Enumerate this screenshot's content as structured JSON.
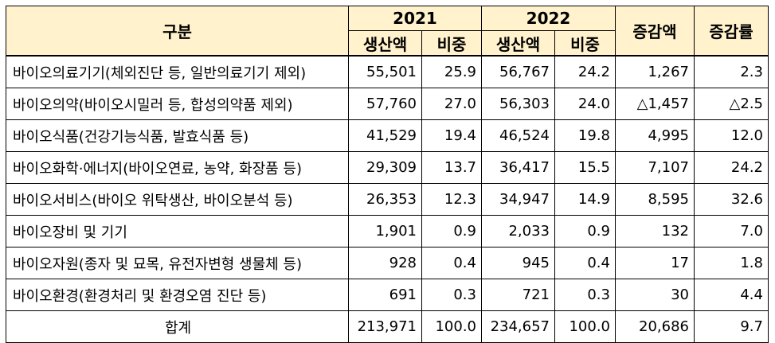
{
  "header": {
    "category": "구분",
    "year1": "2021",
    "year2": "2022",
    "production": "생산액",
    "share": "비중",
    "change_amount": "증감액",
    "change_rate": "증감률"
  },
  "rows": [
    {
      "label": "바이오의료기기(체외진단 등, 일반의료기기 제외)",
      "p2021": "55,501",
      "s2021": "25.9",
      "p2022": "56,767",
      "s2022": "24.2",
      "diff": "1,267",
      "rate": "2.3"
    },
    {
      "label": "바이오의약(바이오시밀러 등, 합성의약품 제외)",
      "p2021": "57,760",
      "s2021": "27.0",
      "p2022": "56,303",
      "s2022": "24.0",
      "diff": "△1,457",
      "rate": "△2.5"
    },
    {
      "label": "바이오식품(건강기능식품, 발효식품 등)",
      "p2021": "41,529",
      "s2021": "19.4",
      "p2022": "46,524",
      "s2022": "19.8",
      "diff": "4,995",
      "rate": "12.0"
    },
    {
      "label": "바이오화학·에너지(바이오연료, 농약, 화장품 등)",
      "p2021": "29,309",
      "s2021": "13.7",
      "p2022": "36,417",
      "s2022": "15.5",
      "diff": "7,107",
      "rate": "24.2"
    },
    {
      "label": "바이오서비스(바이오 위탁생산, 바이오분석 등)",
      "p2021": "26,353",
      "s2021": "12.3",
      "p2022": "34,947",
      "s2022": "14.9",
      "diff": "8,595",
      "rate": "32.6"
    },
    {
      "label": "바이오장비 및 기기",
      "p2021": "1,901",
      "s2021": "0.9",
      "p2022": "2,033",
      "s2022": "0.9",
      "diff": "132",
      "rate": "7.0"
    },
    {
      "label": "바이오자원(종자 및 묘목, 유전자변형 생물체 등)",
      "p2021": "928",
      "s2021": "0.4",
      "p2022": "945",
      "s2022": "0.4",
      "diff": "17",
      "rate": "1.8"
    },
    {
      "label": "바이오환경(환경처리 및 환경오염 진단 등)",
      "p2021": "691",
      "s2021": "0.3",
      "p2022": "721",
      "s2022": "0.3",
      "diff": "30",
      "rate": "4.4"
    }
  ],
  "total": {
    "label": "합계",
    "p2021": "213,971",
    "s2021": "100.0",
    "p2022": "234,657",
    "s2022": "100.0",
    "diff": "20,686",
    "rate": "9.7"
  },
  "colors": {
    "header_bg": "#fff2cc",
    "border": "#000000"
  }
}
